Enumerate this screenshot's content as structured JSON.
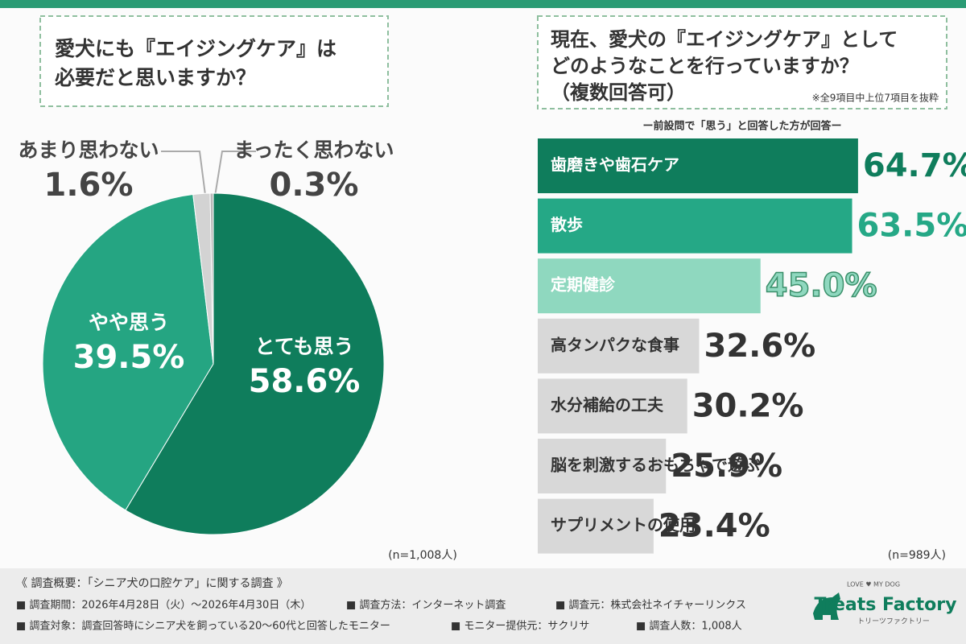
{
  "chart_data": [
    {
      "type": "pie",
      "title": "愛犬にも『エイジングケア』は\n必要だと思いますか？",
      "categories": [
        "とても思う",
        "やや思う",
        "あまり思わない",
        "まったく思わない"
      ],
      "values": [
        58.6,
        39.5,
        1.6,
        0.3
      ],
      "value_labels": [
        "58.6%",
        "39.5%",
        "1.6%",
        "0.3%"
      ],
      "colors": [
        "#0f7d5c",
        "#25a582",
        "#d3d3d3",
        "#b8b8b8"
      ],
      "note": "(n=1,008人)"
    },
    {
      "type": "hbar",
      "title": "現在、愛犬の『エイジングケア』として\nどのようなことを行っていますか？\n（複数回答可）",
      "annotation": "※全9項目中上位7項目を抜粋",
      "subtitle": "ー前設問で「思う」と回答した方が回答ー",
      "categories": [
        "歯磨きや歯石ケア",
        "散歩",
        "定期健診",
        "高タンパクな食事",
        "水分補給の工夫",
        "脳を刺激するおもちゃで遊ぶ",
        "サプリメントの使用"
      ],
      "values": [
        64.7,
        63.5,
        45.0,
        32.6,
        30.2,
        25.9,
        23.4
      ],
      "value_labels": [
        "64.7%",
        "63.5%",
        "45.0%",
        "32.6%",
        "30.2%",
        "25.9%",
        "23.4%"
      ],
      "colors": [
        "#0f7d5c",
        "#25a886",
        "#8fd8bf",
        "#d8d8d8",
        "#d8d8d8",
        "#d8d8d8",
        "#d8d8d8"
      ],
      "note": "(n=989人)"
    }
  ],
  "footer": {
    "heading": "《 調査概要：「シニア犬の口腔ケア」に関する調査 》",
    "items": [
      "■ 調査期間：2026年4月28日（火）〜2026年4月30日（木）",
      "■ 調査方法：インターネット調査",
      "■ 調査元：株式会社ネイチャーリンクス",
      "■ 調査対象：調査回答時にシニア犬を飼っている20〜60代と回答したモニター",
      "■ モニター提供元：サクリサ",
      "■ 調査人数：1,008人"
    ]
  },
  "logo": {
    "tagline": "LOVE ♥ MY DOG",
    "name": "Treats Factory",
    "kana": "トリーツファクトリー"
  }
}
